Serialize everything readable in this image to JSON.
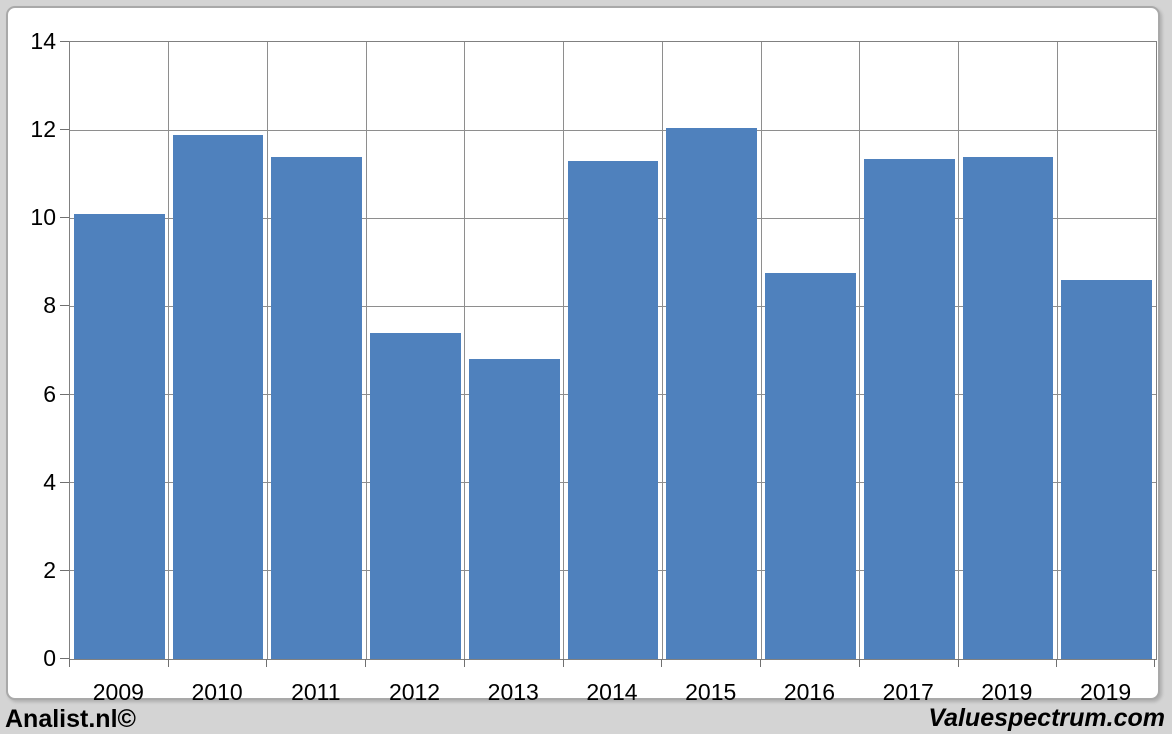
{
  "chart_data": {
    "type": "bar",
    "categories": [
      "2009",
      "2010",
      "2011",
      "2012",
      "2013",
      "2014",
      "2015",
      "2016",
      "2017",
      "2019",
      "2019"
    ],
    "values": [
      10.1,
      11.9,
      11.4,
      7.4,
      6.8,
      11.3,
      12.05,
      8.75,
      11.35,
      11.4,
      8.6
    ],
    "title": "",
    "xlabel": "",
    "ylabel": "",
    "ylim": [
      0,
      14
    ],
    "yticks": [
      0,
      2,
      4,
      6,
      8,
      10,
      12,
      14
    ],
    "grid": true,
    "legend_position": "none",
    "bar_color": "#4f81bd"
  },
  "footer": {
    "left_brand": "Analist.nl©",
    "right_brand": "Valuespectrum.com"
  },
  "colors": {
    "bar": "#4f81bd",
    "gridline": "#8e8e8e",
    "axis_border": "#808080",
    "tick": "#707070",
    "page_background": "#d4d4d4",
    "plot_background": "#ffffff",
    "label_text": "#000000"
  }
}
